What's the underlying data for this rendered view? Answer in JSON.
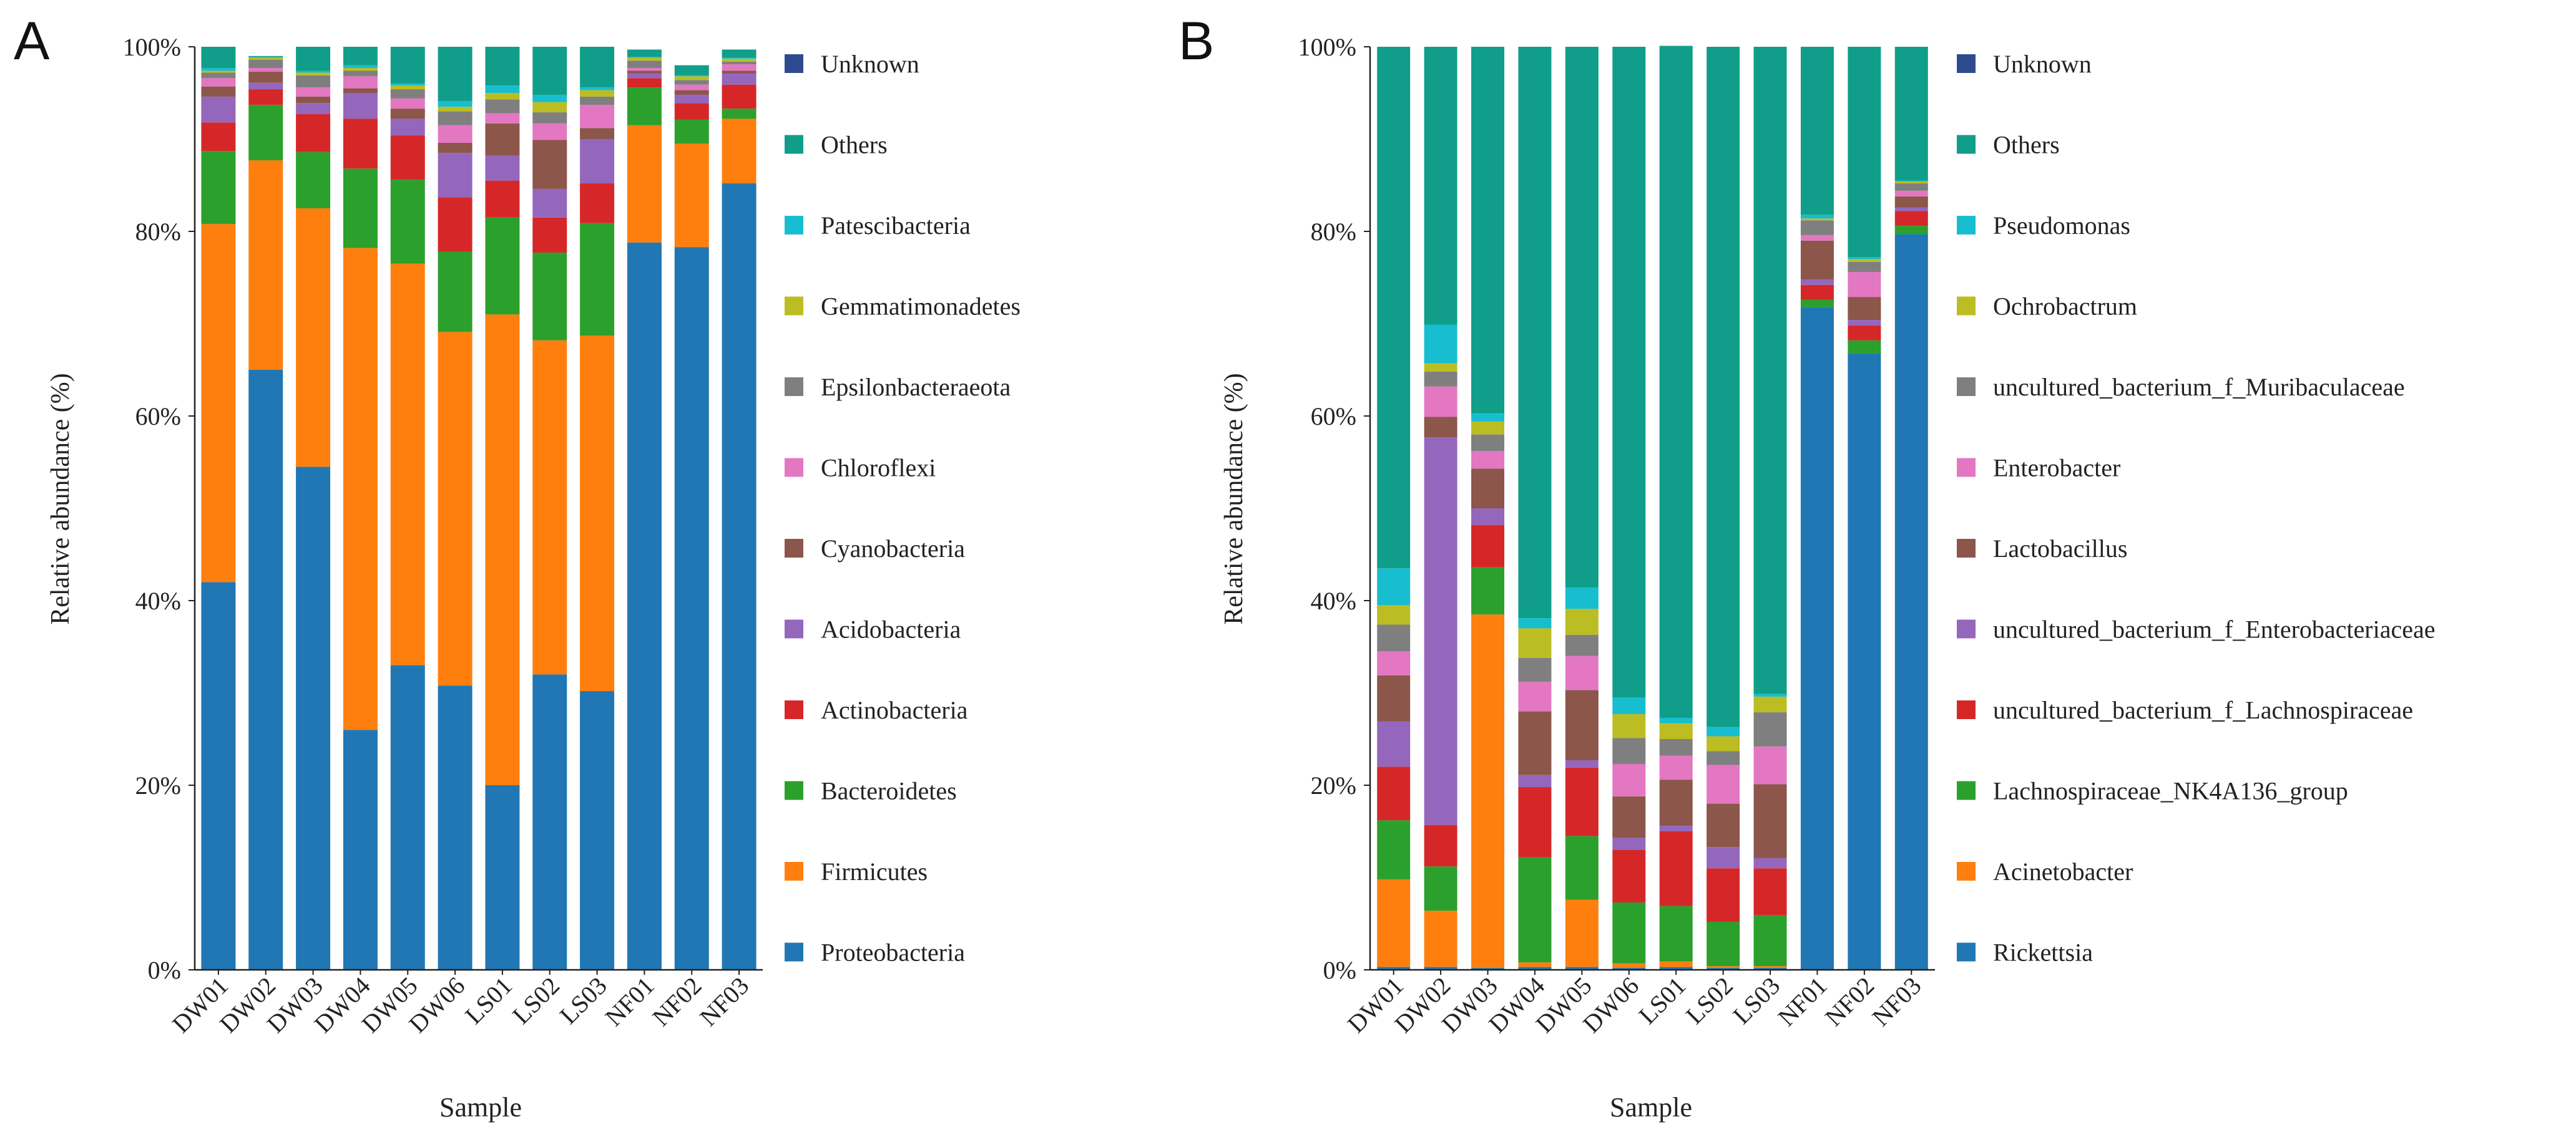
{
  "figure": {
    "panel_labels": [
      "A",
      "B"
    ]
  },
  "chart_data": [
    {
      "type": "bar",
      "stacked": true,
      "panel": "A",
      "title": "",
      "xlabel": "Sample",
      "ylabel": "Relative abundance (%)",
      "ylim": [
        0,
        100
      ],
      "yticks": [
        "0%",
        "20%",
        "40%",
        "60%",
        "80%",
        "100%"
      ],
      "categories": [
        "DW01",
        "DW02",
        "DW03",
        "DW04",
        "DW05",
        "DW06",
        "LS01",
        "LS02",
        "LS03",
        "NF01",
        "NF02",
        "NF03"
      ],
      "series": [
        {
          "name": "Proteobacteria",
          "color": "#2077b4",
          "values": [
            42,
            65,
            54.5,
            26,
            33,
            30.8,
            20,
            32,
            30.2,
            78.8,
            78.3,
            85.2
          ]
        },
        {
          "name": "Firmicutes",
          "color": "#ff7f0e",
          "values": [
            38.8,
            22.7,
            28,
            52.2,
            43.5,
            38.3,
            51,
            36.2,
            38.5,
            12.7,
            11.2,
            7
          ]
        },
        {
          "name": "Bacteroidetes",
          "color": "#2ca02c",
          "values": [
            7.9,
            6,
            6.1,
            8.6,
            9.1,
            8.7,
            10.5,
            9.5,
            12.2,
            4.1,
            2.6,
            1.1
          ]
        },
        {
          "name": "Actinobacteria",
          "color": "#d62728",
          "values": [
            3.1,
            1.7,
            4.1,
            5.4,
            4.8,
            5.9,
            4,
            3.8,
            4.3,
            1,
            1.8,
            2.6
          ]
        },
        {
          "name": "Acidobacteria",
          "color": "#9467bd",
          "values": [
            2.8,
            0.7,
            1.2,
            2.8,
            1.8,
            4.8,
            2.7,
            3.1,
            4.8,
            0.5,
            0.9,
            1.2
          ]
        },
        {
          "name": "Cyanobacteria",
          "color": "#8c564b",
          "values": [
            1.1,
            1.2,
            0.7,
            0.5,
            1.1,
            1.1,
            3.5,
            5.3,
            1.2,
            0.3,
            0.5,
            0.3
          ]
        },
        {
          "name": "Chloroflexi",
          "color": "#e377c2",
          "values": [
            0.9,
            0.4,
            1,
            1.3,
            1.1,
            1.9,
            1.1,
            1.8,
            2.5,
            0.3,
            0.6,
            0.7
          ]
        },
        {
          "name": "Epsilonbacteraeota",
          "color": "#7f7f7f",
          "values": [
            0.6,
            0.9,
            1.3,
            0.6,
            1,
            1.5,
            1.5,
            1.2,
            0.9,
            0.8,
            0.5,
            0.3
          ]
        },
        {
          "name": "Gemmatimonadetes",
          "color": "#bcbd22",
          "values": [
            0.2,
            0.2,
            0.3,
            0.3,
            0.4,
            0.5,
            0.7,
            1.1,
            0.7,
            0.3,
            0.4,
            0.3
          ]
        },
        {
          "name": "Patescibacteria",
          "color": "#17becf",
          "values": [
            0.3,
            0.1,
            0.2,
            0.3,
            0.2,
            0.6,
            0.8,
            0.8,
            0.3,
            0.1,
            0.1,
            0.1
          ]
        },
        {
          "name": "Others",
          "color": "#109e8a",
          "values": [
            2.3,
            0.1,
            2.6,
            2,
            4,
            5.9,
            4.2,
            5.2,
            4.4,
            0.8,
            1.1,
            0.9
          ]
        },
        {
          "name": "Unknown",
          "color": "#2f4b8f",
          "values": [
            0,
            0,
            0,
            0,
            0,
            0,
            0,
            0,
            0,
            0,
            0,
            0
          ]
        }
      ]
    },
    {
      "type": "bar",
      "stacked": true,
      "panel": "B",
      "title": "",
      "xlabel": "Sample",
      "ylabel": "Relative abundance (%)",
      "ylim": [
        0,
        100
      ],
      "yticks": [
        "0%",
        "20%",
        "40%",
        "60%",
        "80%",
        "100%"
      ],
      "categories": [
        "DW01",
        "DW02",
        "DW03",
        "DW04",
        "DW05",
        "DW06",
        "LS01",
        "LS02",
        "LS03",
        "NF01",
        "NF02",
        "NF03"
      ],
      "series": [
        {
          "name": "Rickettsia",
          "color": "#2077b4",
          "values": [
            0.3,
            0.3,
            0.2,
            0.3,
            0.3,
            0.2,
            0.3,
            0.2,
            0.2,
            71.8,
            66.8,
            79.7
          ]
        },
        {
          "name": "Acinetobacter",
          "color": "#ff7f0e",
          "values": [
            9.5,
            6.1,
            38.3,
            0.5,
            7.3,
            0.5,
            0.6,
            0.2,
            0.2,
            0,
            0,
            0
          ]
        },
        {
          "name": "Lachnospiraceae_NK4A136_group",
          "color": "#2ca02c",
          "values": [
            6.4,
            4.8,
            5.1,
            11.4,
            6.9,
            6.6,
            6,
            4.8,
            5.5,
            0.8,
            1.4,
            0.9
          ]
        },
        {
          "name": "uncultured_bacterium_f_Lachnospiraceae",
          "color": "#d62728",
          "values": [
            5.8,
            4.5,
            4.6,
            7.6,
            7.4,
            5.7,
            8.1,
            5.8,
            5.1,
            1.6,
            1.6,
            1.6
          ]
        },
        {
          "name": "uncultured_bacterium_f_Enterobacteriaceae",
          "color": "#9467bd",
          "values": [
            4.9,
            42,
            1.8,
            1.3,
            0.8,
            1.3,
            0.6,
            2.3,
            1.1,
            0.6,
            0.6,
            0.4
          ]
        },
        {
          "name": "Lactobacillus",
          "color": "#8c564b",
          "values": [
            5,
            2.2,
            4.3,
            6.9,
            7.6,
            4.5,
            5,
            4.7,
            8,
            4.2,
            2.5,
            1.2
          ]
        },
        {
          "name": "Enterobacter",
          "color": "#e377c2",
          "values": [
            2.6,
            3.3,
            1.9,
            3.2,
            3.7,
            3.5,
            2.6,
            4.2,
            4.1,
            0.6,
            2.7,
            0.6
          ]
        },
        {
          "name": "uncultured_bacterium_f_Muribaculaceae",
          "color": "#7f7f7f",
          "values": [
            2.9,
            1.6,
            1.8,
            2.6,
            2.3,
            2.8,
            1.8,
            1.5,
            3.7,
            1.6,
            1.1,
            0.8
          ]
        },
        {
          "name": "Ochrobactrum",
          "color": "#bcbd22",
          "values": [
            2.1,
            0.9,
            1.4,
            3.2,
            2.8,
            2.6,
            1.7,
            1.6,
            1.7,
            0.2,
            0.3,
            0.2
          ]
        },
        {
          "name": "Pseudomonas",
          "color": "#17becf",
          "values": [
            4,
            4.2,
            0.9,
            1.1,
            2.3,
            1.8,
            0.6,
            1,
            0.3,
            0.4,
            0.2,
            0.1
          ]
        },
        {
          "name": "Others",
          "color": "#109e8a",
          "values": [
            56.5,
            30.1,
            39.7,
            61.9,
            58.6,
            70.5,
            72.8,
            73.7,
            70.1,
            18.2,
            22.8,
            14.5
          ]
        },
        {
          "name": "Unknown",
          "color": "#2f4b8f",
          "values": [
            0,
            0,
            0,
            0,
            0,
            0,
            0,
            0,
            0,
            0,
            0,
            0
          ]
        }
      ]
    }
  ]
}
